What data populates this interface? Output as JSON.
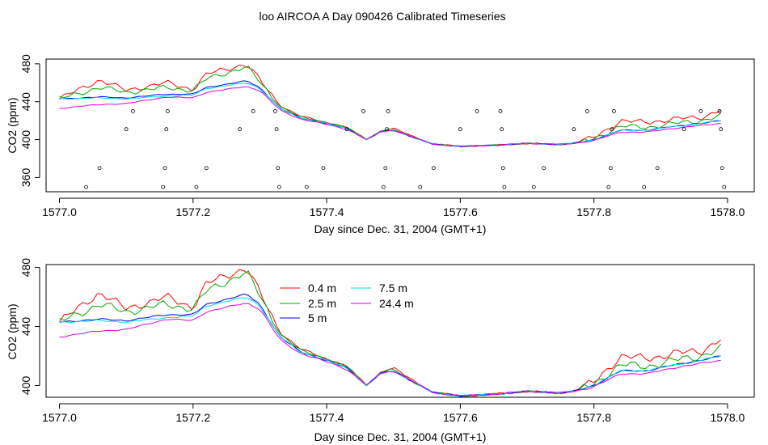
{
  "title": "loo AIRCOA A  Day 090426  Calibrated Timeseries",
  "chart_data": [
    {
      "type": "line",
      "xlabel": "Day since Dec. 31, 2004 (GMT+1)",
      "ylabel": "CO2 (ppm)",
      "xlim": [
        1576.98,
        1578.04
      ],
      "ylim": [
        345,
        485
      ],
      "xticks": [
        "1577.0",
        "1577.2",
        "1577.4",
        "1577.6",
        "1577.8",
        "1578.0"
      ],
      "yticks": [
        "360",
        "400",
        "440",
        "480"
      ],
      "grid": false,
      "series": [
        {
          "name": "0.4 m",
          "color": "#ff0000"
        },
        {
          "name": "2.5 m",
          "color": "#00aa00"
        },
        {
          "name": "5 m",
          "color": "#0000ff"
        },
        {
          "name": "7.5 m",
          "color": "#00dddd"
        },
        {
          "name": "24.4 m",
          "color": "#dd00dd"
        }
      ],
      "x_anchors": [
        1577.0,
        1577.06,
        1577.1,
        1577.16,
        1577.2,
        1577.22,
        1577.28,
        1577.3,
        1577.33,
        1577.36,
        1577.4,
        1577.43,
        1577.46,
        1577.48,
        1577.5,
        1577.52,
        1577.56,
        1577.6,
        1577.65,
        1577.7,
        1577.75,
        1577.77,
        1577.8,
        1577.84,
        1577.88,
        1577.92,
        1577.96,
        1577.99
      ],
      "y_base": [
        443,
        445,
        444,
        448,
        448,
        455,
        462,
        455,
        433,
        423,
        417,
        412,
        400,
        408,
        410,
        405,
        395,
        393,
        394,
        396,
        395,
        396,
        400,
        410,
        410,
        414,
        417,
        420
      ],
      "y_offsets": {
        "0.4 m": [
          0,
          18,
          8,
          12,
          5,
          14,
          18,
          8,
          3,
          2,
          1,
          1,
          0,
          1,
          2,
          1,
          0,
          0,
          0,
          0,
          0,
          0,
          2,
          10,
          8,
          8,
          6,
          12
        ],
        "2.5 m": [
          0,
          10,
          6,
          7,
          4,
          9,
          15,
          6,
          2,
          1,
          1,
          1,
          0,
          1,
          1,
          0,
          0,
          0,
          0,
          0,
          0,
          0,
          1,
          4,
          3,
          3,
          3,
          5
        ],
        "5 m": [
          0,
          0,
          0,
          0,
          0,
          0,
          0,
          0,
          0,
          0,
          0,
          0,
          0,
          0,
          0,
          0,
          0,
          0,
          0,
          0,
          0,
          0,
          0,
          0,
          0,
          0,
          0,
          0
        ],
        "7.5 m": [
          0,
          -1,
          -1,
          -2,
          -1,
          -1,
          -2,
          -1,
          0,
          0,
          0,
          0,
          0,
          0,
          0,
          0,
          0,
          0,
          0,
          0,
          0,
          0,
          0,
          0,
          0,
          0,
          0,
          0
        ],
        "24.4 m": [
          -10,
          -8,
          -6,
          -3,
          -4,
          -5,
          -6,
          -3,
          -2,
          -1,
          -1,
          -1,
          0,
          0,
          0,
          0,
          0,
          0,
          0,
          0,
          0,
          0,
          -1,
          -2,
          -2,
          -2,
          -2,
          -3
        ]
      },
      "flag_points": [
        [
          1577.04,
          350
        ],
        [
          1577.06,
          370
        ],
        [
          1577.1,
          411
        ],
        [
          1577.11,
          430
        ],
        [
          1577.155,
          350
        ],
        [
          1577.158,
          370
        ],
        [
          1577.16,
          411
        ],
        [
          1577.162,
          430
        ],
        [
          1577.205,
          350
        ],
        [
          1577.22,
          370
        ],
        [
          1577.27,
          411
        ],
        [
          1577.29,
          430
        ],
        [
          1577.323,
          430
        ],
        [
          1577.325,
          411
        ],
        [
          1577.327,
          370
        ],
        [
          1577.329,
          350
        ],
        [
          1577.37,
          350
        ],
        [
          1577.395,
          370
        ],
        [
          1577.43,
          411
        ],
        [
          1577.455,
          430
        ],
        [
          1577.485,
          350
        ],
        [
          1577.488,
          370
        ],
        [
          1577.49,
          411
        ],
        [
          1577.492,
          430
        ],
        [
          1577.54,
          350
        ],
        [
          1577.56,
          370
        ],
        [
          1577.6,
          411
        ],
        [
          1577.625,
          430
        ],
        [
          1577.66,
          430
        ],
        [
          1577.662,
          411
        ],
        [
          1577.664,
          370
        ],
        [
          1577.666,
          350
        ],
        [
          1577.71,
          350
        ],
        [
          1577.725,
          370
        ],
        [
          1577.77,
          411
        ],
        [
          1577.79,
          430
        ],
        [
          1577.822,
          350
        ],
        [
          1577.825,
          370
        ],
        [
          1577.827,
          411
        ],
        [
          1577.83,
          430
        ],
        [
          1577.875,
          350
        ],
        [
          1577.895,
          370
        ],
        [
          1577.935,
          411
        ],
        [
          1577.96,
          430
        ],
        [
          1577.988,
          430
        ],
        [
          1577.99,
          411
        ],
        [
          1577.992,
          370
        ],
        [
          1577.995,
          350
        ]
      ]
    },
    {
      "type": "line",
      "xlabel": "Day since Dec. 31, 2004 (GMT+1)",
      "ylabel": "CO2 (ppm)",
      "xlim": [
        1576.98,
        1578.04
      ],
      "ylim": [
        392,
        482
      ],
      "xticks": [
        "1577.0",
        "1577.2",
        "1577.4",
        "1577.6",
        "1577.8",
        "1578.0"
      ],
      "yticks": [
        "400",
        "440",
        "480"
      ],
      "grid": false,
      "legend": "top-center",
      "legend_entries": [
        "0.4 m",
        "2.5 m",
        "5 m",
        "7.5 m",
        "24.4 m"
      ]
    }
  ]
}
